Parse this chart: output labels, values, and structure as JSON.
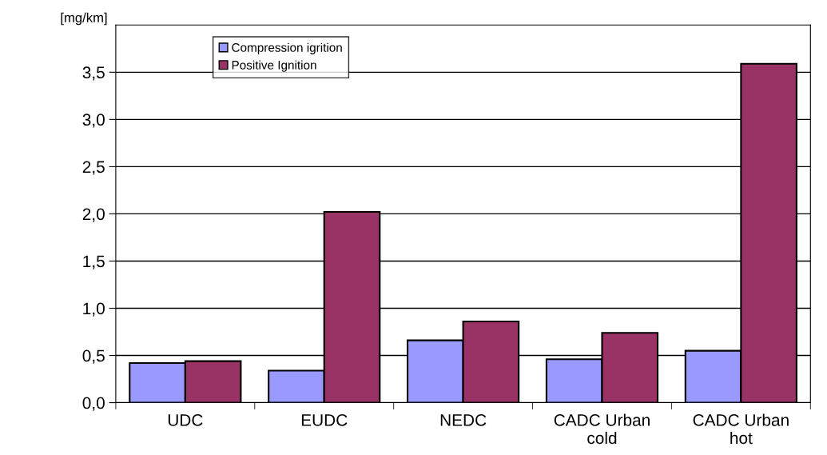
{
  "chart_data": {
    "type": "bar",
    "ylabel": "[mg/km]",
    "categories": [
      "UDC",
      "EUDC",
      "NEDC",
      "CADC Urban\ncold",
      "CADC Urban\nhot"
    ],
    "series": [
      {
        "name": "Compression igrition",
        "color": "#9999ff",
        "values": [
          0.42,
          0.34,
          0.66,
          0.46,
          0.55
        ]
      },
      {
        "name": "Positive Ignition",
        "color": "#993366",
        "values": [
          0.44,
          2.02,
          0.86,
          0.74,
          3.59
        ]
      }
    ],
    "ylim": [
      0,
      4
    ],
    "yticks": [
      {
        "value": 0,
        "label": "0,0"
      },
      {
        "value": 0.5,
        "label": "0,5"
      },
      {
        "value": 1,
        "label": "1,0"
      },
      {
        "value": 1.5,
        "label": "1,5"
      },
      {
        "value": 2,
        "label": "2,0"
      },
      {
        "value": 2.5,
        "label": "2,5"
      },
      {
        "value": 3,
        "label": "3,0"
      },
      {
        "value": 3.5,
        "label": "3,5"
      }
    ],
    "grid": "y",
    "legend": "top left"
  }
}
